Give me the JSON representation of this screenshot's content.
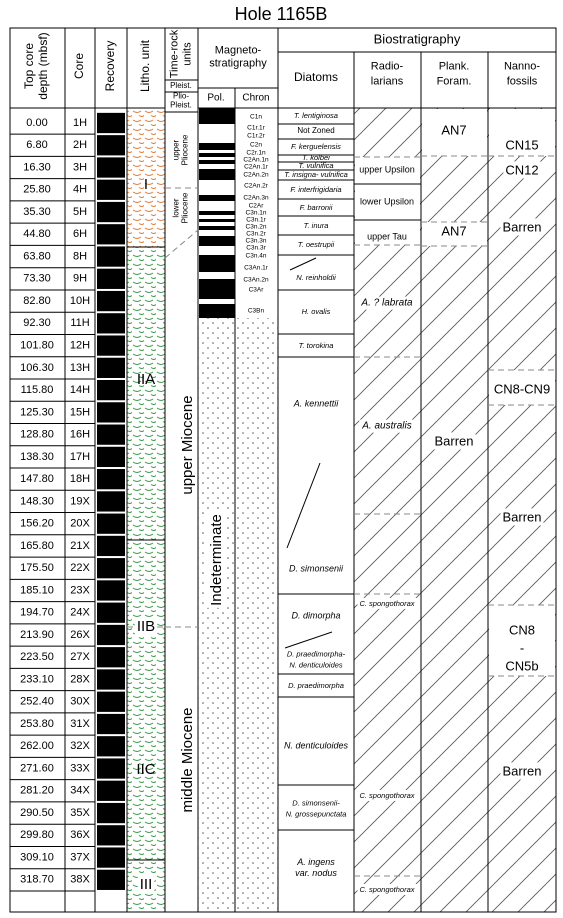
{
  "title": "Hole 1165B",
  "headers": {
    "depth": [
      "Top core",
      "depth (mbsf)"
    ],
    "core": [
      "Core"
    ],
    "recovery": [
      "Recovery"
    ],
    "litho": [
      "Litho. unit"
    ],
    "time_rock": [
      "Time-rock",
      "units"
    ],
    "magneto": [
      "Magneto-",
      "stratigraphy"
    ],
    "pol": [
      "Pol."
    ],
    "chron": [
      "Chron"
    ],
    "bio": [
      "Biostratigraphy"
    ],
    "diatoms": [
      "Diatoms"
    ],
    "radiolarians": [
      "Radio-",
      "larians"
    ],
    "plank_foram": [
      "Plank.",
      "Foram."
    ],
    "nannofossils": [
      "Nanno-",
      "fossils"
    ]
  },
  "cores": [
    {
      "depth": "0.00",
      "core": "1H"
    },
    {
      "depth": "6.80",
      "core": "2H"
    },
    {
      "depth": "16.30",
      "core": "3H"
    },
    {
      "depth": "25.80",
      "core": "4H"
    },
    {
      "depth": "35.30",
      "core": "5H"
    },
    {
      "depth": "44.80",
      "core": "6H"
    },
    {
      "depth": "63.80",
      "core": "8H"
    },
    {
      "depth": "73.30",
      "core": "9H"
    },
    {
      "depth": "82.80",
      "core": "10H"
    },
    {
      "depth": "92.30",
      "core": "11H"
    },
    {
      "depth": "101.80",
      "core": "12H"
    },
    {
      "depth": "106.30",
      "core": "13H"
    },
    {
      "depth": "115.80",
      "core": "14H"
    },
    {
      "depth": "125.30",
      "core": "15H"
    },
    {
      "depth": "128.80",
      "core": "16H"
    },
    {
      "depth": "138.30",
      "core": "17H"
    },
    {
      "depth": "147.80",
      "core": "18H"
    },
    {
      "depth": "148.30",
      "core": "19X"
    },
    {
      "depth": "156.20",
      "core": "20X"
    },
    {
      "depth": "165.80",
      "core": "21X"
    },
    {
      "depth": "175.50",
      "core": "22X"
    },
    {
      "depth": "185.10",
      "core": "23X"
    },
    {
      "depth": "194.70",
      "core": "24X"
    },
    {
      "depth": "213.90",
      "core": "26X"
    },
    {
      "depth": "223.50",
      "core": "27X"
    },
    {
      "depth": "233.10",
      "core": "28X"
    },
    {
      "depth": "252.40",
      "core": "30X"
    },
    {
      "depth": "253.80",
      "core": "31X"
    },
    {
      "depth": "262.00",
      "core": "32X"
    },
    {
      "depth": "271.60",
      "core": "33X"
    },
    {
      "depth": "281.20",
      "core": "34X"
    },
    {
      "depth": "290.50",
      "core": "35X"
    },
    {
      "depth": "299.80",
      "core": "36X"
    },
    {
      "depth": "309.10",
      "core": "37X"
    },
    {
      "depth": "318.70",
      "core": "38X"
    }
  ],
  "litho_units": [
    "I",
    "IIA",
    "IIB",
    "IIC",
    "III"
  ],
  "time_rock": [
    [
      "Pleist."
    ],
    [
      "Plio-",
      "Pleist."
    ],
    [
      "upper",
      "Pliocene"
    ],
    [
      "lower",
      "Pliocene"
    ],
    [
      "upper Miocene"
    ],
    [
      "middle Miocene"
    ]
  ],
  "chrons": [
    "C1n",
    "C1r.1r",
    "C1r.2r",
    "C2n",
    "C2r.1n",
    "C2An.1n",
    "C2An.1r",
    "C2An.2n",
    "C2An.2r",
    "C2An.3n",
    "C2Ar",
    "C3n.1n",
    "C3n.1r",
    "C3n.2n",
    "C3n.2r",
    "C3n.3n",
    "C3n.3r",
    "C3n.4n",
    "C3An.1r",
    "C3An.2n",
    "C3Ar",
    "C3Bn"
  ],
  "polarity_note": "Indeterminate",
  "diatoms": [
    [
      "T. lentiginosa"
    ],
    [
      "Not Zoned"
    ],
    [
      "F. kerguelensis"
    ],
    [
      "T. kolbei"
    ],
    [
      "T. vulnifica"
    ],
    [
      "T. insigna- vulnifica"
    ],
    [
      "F. interfrigidaria"
    ],
    [
      "F. barronii"
    ],
    [
      "T. inura"
    ],
    [
      "T. oestrupii"
    ],
    [
      "N. reinholdii"
    ],
    [
      "H. ovalis"
    ],
    [
      "T. torokina"
    ],
    [
      "A. kennettii"
    ],
    [
      "D. simonsenii"
    ],
    [
      "D. dimorpha"
    ],
    [
      "D. praedimorpha-",
      "N. denticuloides"
    ],
    [
      "D. praedimorpha"
    ],
    [
      "N. denticuloides"
    ],
    [
      "D. simonsenii-",
      "N. grossepunctata"
    ],
    [
      "A. ingens",
      "var. nodus"
    ]
  ],
  "radiolarians": [
    [
      "upper Upsilon"
    ],
    [
      "lower Upsilon"
    ],
    [
      "upper Tau"
    ],
    [
      "A. ? labrata"
    ],
    [
      "A. australis"
    ],
    [
      "C. spongothorax"
    ],
    [
      "C. spongothorax"
    ],
    [
      "C. spongothorax"
    ]
  ],
  "plank_foram": [
    [
      "AN7"
    ],
    [
      "AN7"
    ],
    [
      "Barren"
    ]
  ],
  "nannofossils": [
    [
      "CN15"
    ],
    [
      "CN12"
    ],
    [
      "Barren"
    ],
    [
      "CN8-CN9"
    ],
    [
      "Barren"
    ],
    [
      "CN8",
      "-",
      "CN5b"
    ],
    [
      "Barren"
    ]
  ]
}
